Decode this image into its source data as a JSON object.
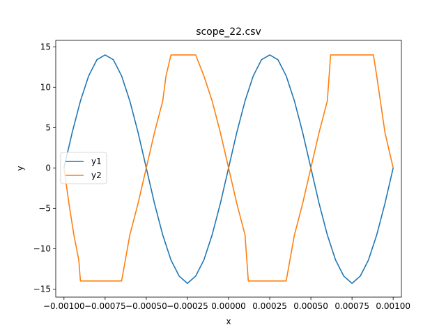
{
  "chart_data": {
    "type": "line",
    "title": "scope_22.csv",
    "xlabel": "x",
    "ylabel": "y",
    "xlim": [
      -0.00105,
      0.00105
    ],
    "ylim": [
      -16.0,
      15.8
    ],
    "xticks": [
      -0.001,
      -0.00075,
      -0.0005,
      -0.00025,
      0.0,
      0.00025,
      0.0005,
      0.00075,
      0.001
    ],
    "xtick_labels": [
      "−0.00100",
      "−0.00075",
      "−0.00050",
      "−0.00025",
      "0.00000",
      "0.00025",
      "0.00050",
      "0.00075",
      "0.00100"
    ],
    "yticks": [
      -15,
      -10,
      -5,
      0,
      5,
      10,
      15
    ],
    "ytick_labels": [
      "−15",
      "−10",
      "−5",
      "0",
      "5",
      "10",
      "15"
    ],
    "legend": {
      "placement": "center-left",
      "entries": [
        "y1",
        "y2"
      ]
    },
    "grid": false,
    "series": [
      {
        "name": "y1",
        "color": "#1f77b4",
        "x": [
          -0.001,
          -0.00095,
          -0.0009,
          -0.00085,
          -0.0008,
          -0.00075,
          -0.0007,
          -0.00065,
          -0.0006,
          -0.00055,
          -0.0005,
          -0.00045,
          -0.0004,
          -0.00035,
          -0.0003,
          -0.00025,
          -0.0002,
          -0.00015,
          -0.0001,
          -5e-05,
          0.0,
          5e-05,
          0.0001,
          0.00015,
          0.0002,
          0.00025,
          0.0003,
          0.00035,
          0.0004,
          0.00045,
          0.0005,
          0.00055,
          0.0006,
          0.00065,
          0.0007,
          0.00075,
          0.0008,
          0.00085,
          0.0009,
          0.00095,
          0.001
        ],
        "y": [
          0.0,
          4.4,
          8.3,
          11.4,
          13.4,
          14.0,
          13.4,
          11.4,
          8.3,
          4.4,
          0.0,
          -4.4,
          -8.3,
          -11.4,
          -13.4,
          -14.3,
          -13.4,
          -11.4,
          -8.3,
          -4.4,
          0.0,
          4.4,
          8.3,
          11.4,
          13.4,
          14.0,
          13.4,
          11.4,
          8.3,
          4.4,
          0.0,
          -4.4,
          -8.3,
          -11.4,
          -13.4,
          -14.3,
          -13.4,
          -11.4,
          -8.3,
          -4.4,
          0.0
        ]
      },
      {
        "name": "y2",
        "color": "#ff7f0e",
        "x": [
          -0.001,
          -0.00097,
          -0.00094,
          -0.00091,
          -0.0009,
          -0.0008,
          -0.0007,
          -0.00065,
          -0.0006,
          -0.00055,
          -0.0005,
          -0.00045,
          -0.0004,
          -0.00038,
          -0.00035,
          -0.0003,
          -0.00025,
          -0.0002,
          -0.00015,
          -0.0001,
          -5e-05,
          0.0,
          5e-05,
          0.0001,
          0.00012,
          0.0002,
          0.0003,
          0.00035,
          0.0004,
          0.00045,
          0.0005,
          0.00055,
          0.0006,
          0.00062,
          0.0007,
          0.0008,
          0.00088,
          0.0009,
          0.00095,
          0.001
        ],
        "y": [
          0.0,
          -4.4,
          -8.3,
          -11.4,
          -14.0,
          -14.0,
          -14.0,
          -14.0,
          -8.3,
          -4.4,
          0.0,
          4.4,
          8.3,
          11.4,
          14.0,
          14.0,
          14.0,
          14.0,
          11.4,
          8.3,
          4.4,
          0.0,
          -4.4,
          -8.3,
          -14.0,
          -14.0,
          -14.0,
          -14.0,
          -8.3,
          -4.4,
          0.0,
          4.4,
          8.3,
          14.0,
          14.0,
          14.0,
          14.0,
          11.4,
          4.4,
          0.0
        ]
      }
    ]
  }
}
